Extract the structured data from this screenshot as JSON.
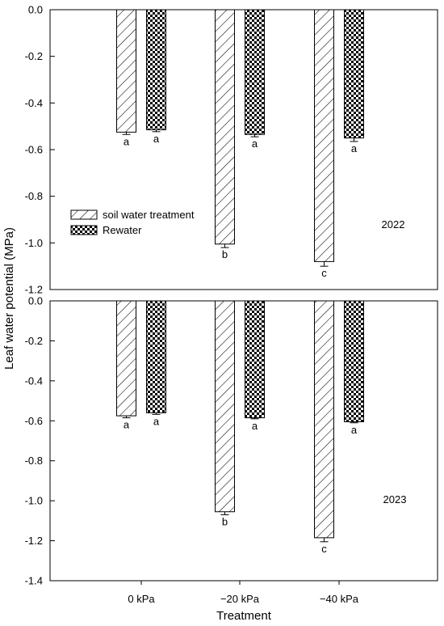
{
  "chart_data": {
    "type": "bar",
    "ylabel": "Leaf water potential (MPa)",
    "xlabel": "Treatment",
    "categories": [
      "0 kPa",
      "−20 kPa",
      "−40 kPa"
    ],
    "legend": {
      "placement": "left",
      "entries": [
        {
          "name": "soil water treatment",
          "pattern": "diagonal-hatch"
        },
        {
          "name": "Rewater",
          "pattern": "checker"
        }
      ]
    },
    "panels": [
      {
        "year_label": "2022",
        "ylim": [
          -1.2,
          0
        ],
        "yticks": [
          "0.0",
          "-0.2",
          "-0.4",
          "-0.6",
          "-0.8",
          "-1.0",
          "-1.2"
        ],
        "series": [
          {
            "name": "soil water treatment",
            "values": [
              -0.525,
              -1.005,
              -1.08
            ],
            "errors": [
              0.01,
              0.015,
              0.02
            ],
            "letters": [
              "a",
              "b",
              "c"
            ]
          },
          {
            "name": "Rewater",
            "values": [
              -0.515,
              -0.535,
              -0.55
            ],
            "errors": [
              0.008,
              0.01,
              0.015
            ],
            "letters": [
              "a",
              "a",
              "a"
            ]
          }
        ]
      },
      {
        "year_label": "2023",
        "ylim": [
          -1.4,
          0
        ],
        "yticks": [
          "0.0",
          "-0.2",
          "-0.4",
          "-0.6",
          "-0.8",
          "-1.0",
          "-1.2",
          "-1.4"
        ],
        "series": [
          {
            "name": "soil water treatment",
            "values": [
              -0.575,
              -1.055,
              -1.185
            ],
            "errors": [
              0.01,
              0.015,
              0.02
            ],
            "letters": [
              "a",
              "b",
              "c"
            ]
          },
          {
            "name": "Rewater",
            "values": [
              -0.56,
              -0.585,
              -0.605
            ],
            "errors": [
              0.008,
              0.005,
              0.005
            ],
            "letters": [
              "a",
              "a",
              "a"
            ]
          }
        ]
      }
    ]
  }
}
